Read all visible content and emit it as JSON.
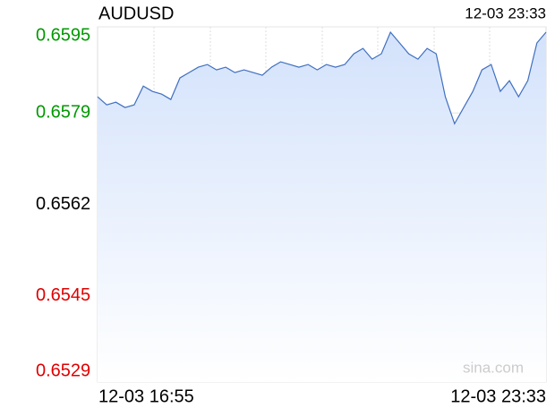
{
  "chart_data": {
    "type": "area",
    "title": "AUDUSD",
    "updated": "12-03 23:33",
    "watermark": "sina.com",
    "categories": [
      "12-03 16:55",
      null,
      null,
      null,
      null,
      null,
      null,
      null,
      null,
      null,
      null,
      null,
      null,
      null,
      null,
      null,
      null,
      null,
      null,
      null,
      null,
      null,
      null,
      null,
      null,
      null,
      null,
      null,
      null,
      null,
      null,
      null,
      null,
      null,
      null,
      null,
      null,
      null,
      null,
      null,
      null,
      null,
      null,
      null,
      null,
      null,
      null,
      null,
      null,
      "12-03 23:33"
    ],
    "values": [
      0.6582,
      0.65805,
      0.6581,
      0.658,
      0.65805,
      0.6584,
      0.6583,
      0.65825,
      0.65815,
      0.65855,
      0.65865,
      0.65875,
      0.6588,
      0.6587,
      0.65875,
      0.65865,
      0.6587,
      0.65865,
      0.6586,
      0.65875,
      0.65885,
      0.6588,
      0.65875,
      0.6588,
      0.6587,
      0.6588,
      0.65875,
      0.6588,
      0.659,
      0.6591,
      0.6589,
      0.659,
      0.6594,
      0.6592,
      0.659,
      0.6589,
      0.6591,
      0.659,
      0.6582,
      0.6577,
      0.658,
      0.6583,
      0.6587,
      0.6588,
      0.6583,
      0.6585,
      0.6582,
      0.6585,
      0.6592,
      0.6594
    ],
    "color": "#3f6fc0",
    "fill": "#d3e2fb",
    "ylim": [
      0.6529,
      0.6595
    ],
    "yticks": [
      0.6529,
      0.6545,
      0.6562,
      0.6579,
      0.6595
    ],
    "tick_colors": [
      "#e00000",
      "#e00000",
      "#000000",
      "#009900",
      "#009900"
    ],
    "grid": true
  }
}
